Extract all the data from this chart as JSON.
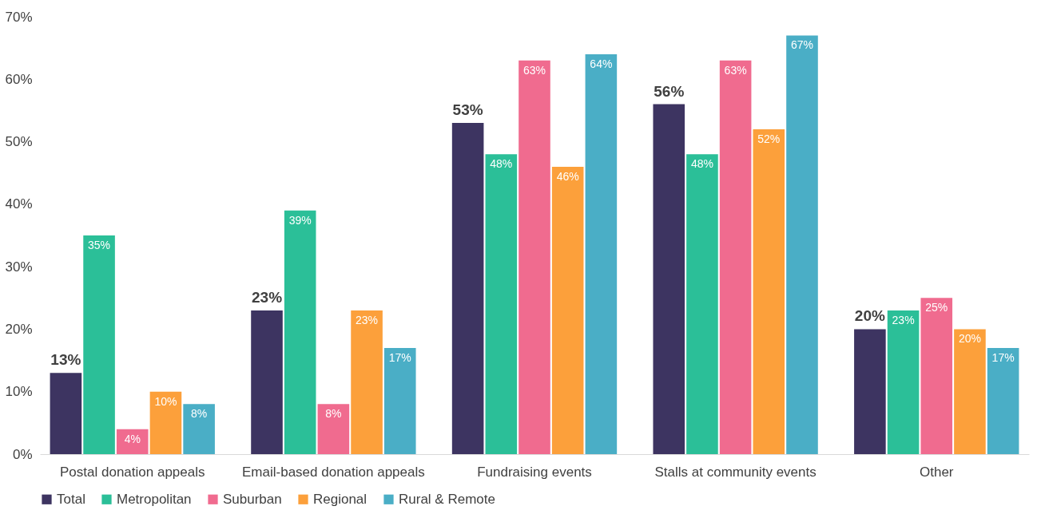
{
  "chart_data": {
    "type": "bar",
    "categories": [
      "Postal donation appeals",
      "Email-based donation appeals",
      "Fundraising events",
      "Stalls at community events",
      "Other"
    ],
    "series": [
      {
        "name": "Total",
        "color": "#3d3461",
        "values": [
          13,
          23,
          53,
          56,
          20
        ],
        "value_labels": [
          "13%",
          "23%",
          "53%",
          "56%",
          "20%"
        ]
      },
      {
        "name": "Metropolitan",
        "color": "#2bbf98",
        "values": [
          35,
          39,
          48,
          48,
          23
        ],
        "value_labels": [
          "35%",
          "39%",
          "48%",
          "48%",
          "23%"
        ]
      },
      {
        "name": "Suburban",
        "color": "#f06b8f",
        "values": [
          4,
          8,
          63,
          63,
          25
        ],
        "value_labels": [
          "4%",
          "8%",
          "63%",
          "63%",
          "25%"
        ]
      },
      {
        "name": "Regional",
        "color": "#fca03b",
        "values": [
          10,
          23,
          46,
          52,
          20
        ],
        "value_labels": [
          "10%",
          "23%",
          "46%",
          "52%",
          "20%"
        ]
      },
      {
        "name": "Rural & Remote",
        "color": "#4aaec6",
        "values": [
          8,
          17,
          64,
          67,
          17
        ],
        "value_labels": [
          "8%",
          "17%",
          "64%",
          "67%",
          "17%"
        ]
      }
    ],
    "ylim": [
      0,
      70
    ],
    "yticks": [
      {
        "value": 0,
        "label": "0%"
      },
      {
        "value": 10,
        "label": "10%"
      },
      {
        "value": 20,
        "label": "20%"
      },
      {
        "value": 30,
        "label": "30%"
      },
      {
        "value": 40,
        "label": "40%"
      },
      {
        "value": 50,
        "label": "50%"
      },
      {
        "value": 60,
        "label": "60%"
      },
      {
        "value": 70,
        "label": "70%"
      }
    ],
    "legend": "bottom",
    "grid": false
  }
}
